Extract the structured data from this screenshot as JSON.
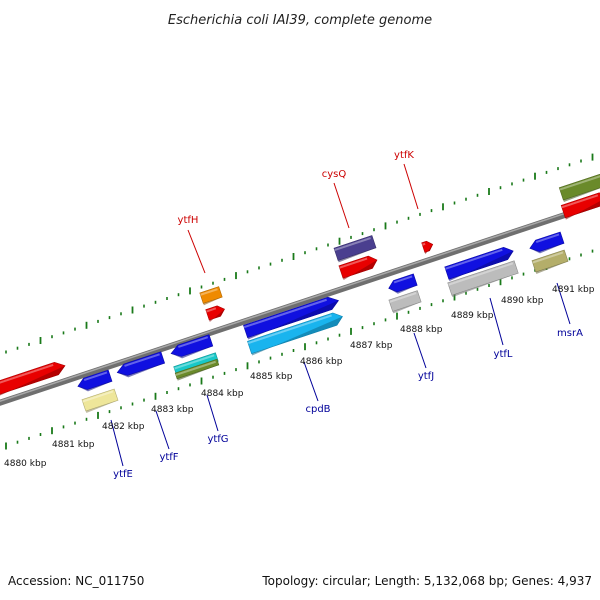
{
  "title": "Escherichia coli IAI39, complete genome",
  "footer": {
    "accession": "Accession: NC_011750",
    "summary": "Topology: circular; Length: 5,132,068 bp; Genes: 4,937"
  },
  "colors": {
    "forward_label": "#cc0000",
    "reverse_label": "#000099",
    "tick": "#1a7a1a",
    "backbone": "#7a7a7a"
  },
  "kbp_labels": [
    "4880 kbp",
    "4881 kbp",
    "4882 kbp",
    "4883 kbp",
    "4884 kbp",
    "4885 kbp",
    "4886 kbp",
    "4887 kbp",
    "4888 kbp",
    "4889 kbp",
    "4890 kbp",
    "4891 kbp"
  ],
  "gene_labels": [
    {
      "name": "ytfH",
      "strand": "forward"
    },
    {
      "name": "cysQ",
      "strand": "forward"
    },
    {
      "name": "ytfK",
      "strand": "forward"
    },
    {
      "name": "ytfE",
      "strand": "reverse"
    },
    {
      "name": "ytfF",
      "strand": "reverse"
    },
    {
      "name": "ytfG",
      "strand": "reverse"
    },
    {
      "name": "cpdB",
      "strand": "reverse"
    },
    {
      "name": "ytfJ",
      "strand": "reverse"
    },
    {
      "name": "ytfL",
      "strand": "reverse"
    },
    {
      "name": "msrA",
      "strand": "reverse"
    }
  ],
  "features": [
    {
      "name": "forward-feature-1",
      "color": "#e80000",
      "arrow": "right"
    },
    {
      "name": "forward-feature-2",
      "color": "#ef8a00",
      "arrow": "none"
    },
    {
      "name": "forward-feature-3",
      "color": "#e80000",
      "arrow": "right"
    },
    {
      "name": "forward-feature-4",
      "color": "#4a3f8f",
      "arrow": "none"
    },
    {
      "name": "forward-feature-5",
      "color": "#e80000",
      "arrow": "right"
    },
    {
      "name": "forward-feature-6",
      "color": "#e80000",
      "arrow": "right"
    },
    {
      "name": "forward-feature-7",
      "color": "#6a8a2a",
      "arrow": "none"
    },
    {
      "name": "forward-feature-8",
      "color": "#e80000",
      "arrow": "right"
    },
    {
      "name": "reverse-feature-1",
      "color": "#1010e0",
      "arrow": "left"
    },
    {
      "name": "reverse-feature-2",
      "color": "#eee69a",
      "arrow": "none"
    },
    {
      "name": "reverse-feature-3",
      "color": "#1010e0",
      "arrow": "left"
    },
    {
      "name": "reverse-feature-4",
      "color": "#1010e0",
      "arrow": "left"
    },
    {
      "name": "reverse-feature-5",
      "color": "#18c8c8",
      "arrow": "none"
    },
    {
      "name": "reverse-feature-6",
      "color": "#6a8a2a",
      "arrow": "none"
    },
    {
      "name": "reverse-feature-7",
      "color": "#1010e0",
      "arrow": "right"
    },
    {
      "name": "reverse-feature-8",
      "color": "#19b4ee",
      "arrow": "right"
    },
    {
      "name": "reverse-feature-9",
      "color": "#1010e0",
      "arrow": "left"
    },
    {
      "name": "reverse-feature-10",
      "color": "#bcbcbc",
      "arrow": "none"
    },
    {
      "name": "reverse-feature-11",
      "color": "#1010e0",
      "arrow": "right"
    },
    {
      "name": "reverse-feature-12",
      "color": "#bcbcbc",
      "arrow": "none"
    },
    {
      "name": "reverse-feature-13",
      "color": "#1010e0",
      "arrow": "left"
    },
    {
      "name": "reverse-feature-14",
      "color": "#b4ae6a",
      "arrow": "none"
    }
  ]
}
